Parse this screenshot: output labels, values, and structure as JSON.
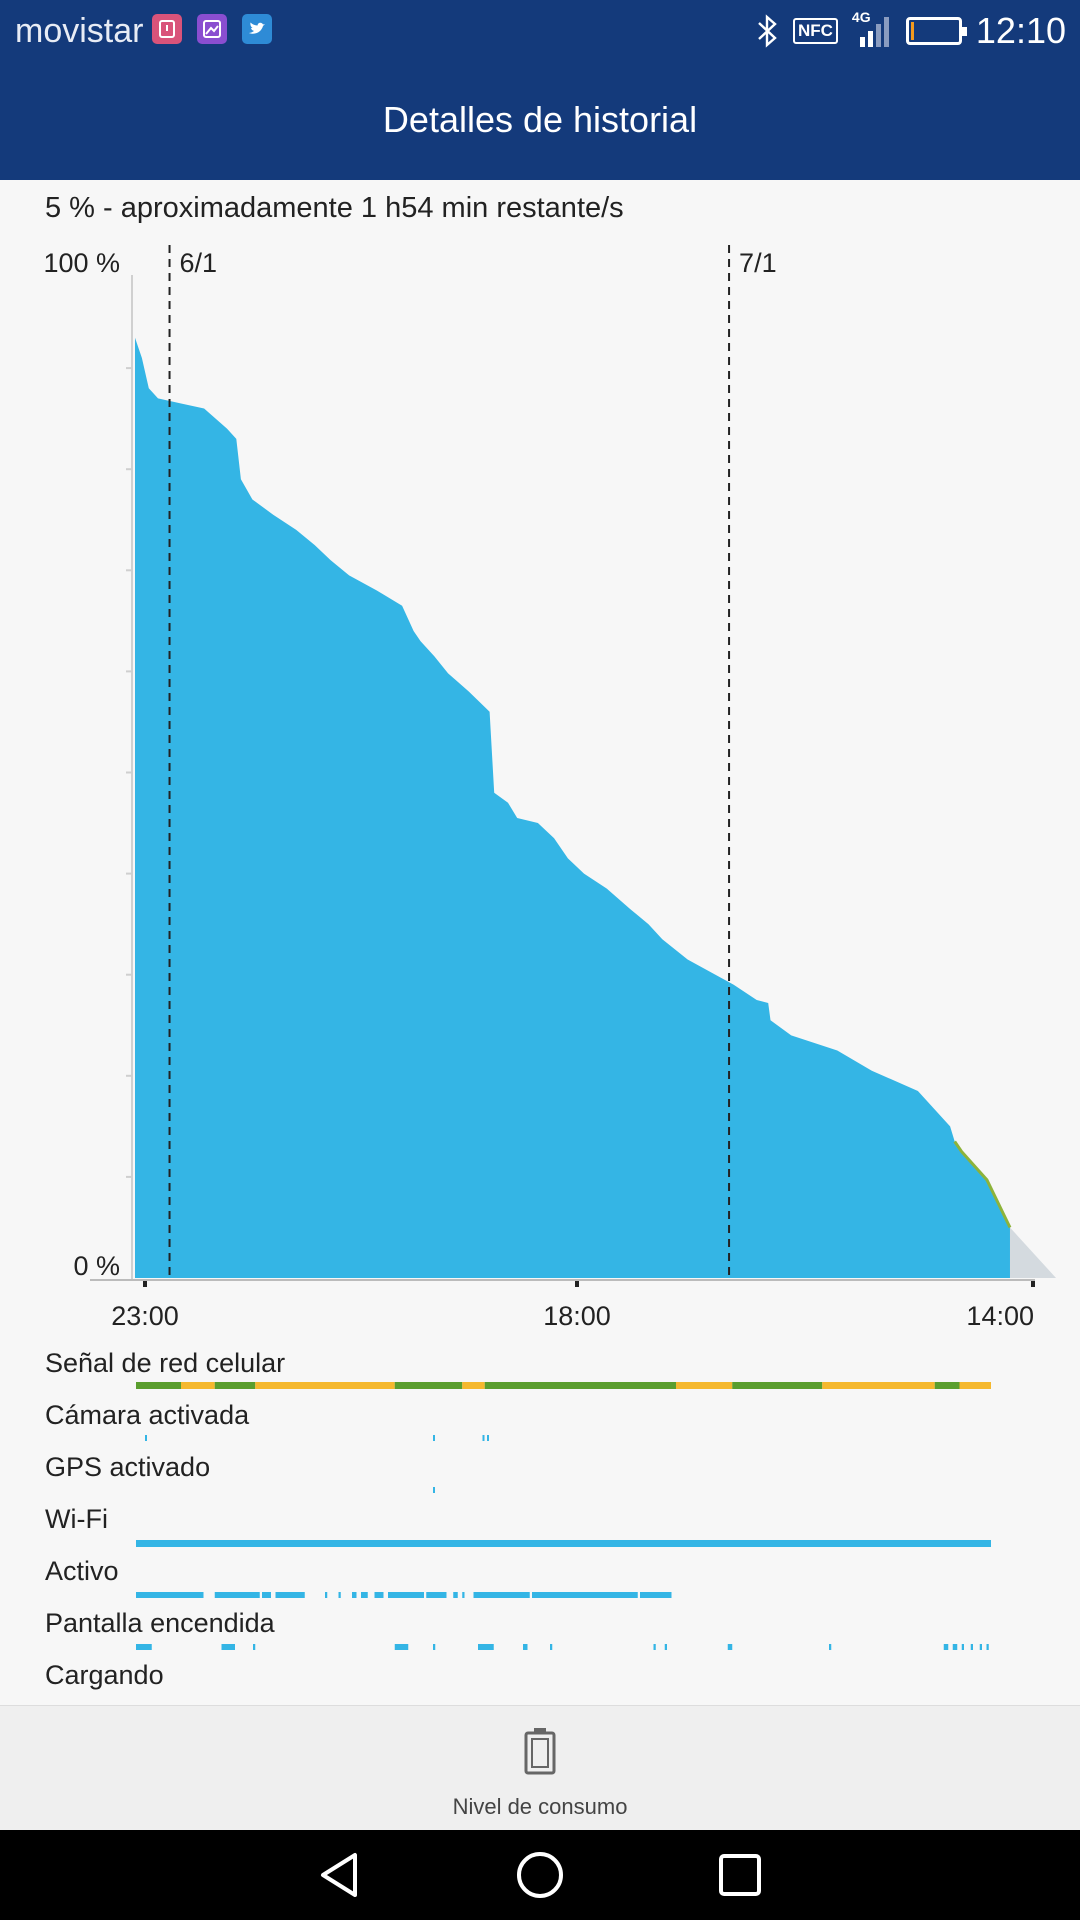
{
  "statusbar": {
    "carrier": "movistar",
    "network": "4G",
    "nfc": "NFC",
    "time": "12:10",
    "notif_icons": [
      "bag-app-icon",
      "gallery-app-icon",
      "twitter-icon"
    ],
    "battery_level": 0.05
  },
  "appbar": {
    "title": "Detalles de historial"
  },
  "summary": "5 % - aproximadamente 1 h54 min restante/s",
  "chart_data": {
    "type": "area",
    "ylim": [
      0,
      100
    ],
    "y_tick_labels": [
      "100 %",
      "0 %"
    ],
    "x_tick_labels": [
      "23:00",
      "18:00",
      "14:00"
    ],
    "date_markers": [
      "6/1",
      "7/1"
    ],
    "x_unit": "hours since 23:00 (5 Jan)",
    "x_domain": [
      0,
      39
    ],
    "series": [
      {
        "name": "battery",
        "x": [
          0,
          0.3,
          0.6,
          1.0,
          2.0,
          3.0,
          4.0,
          4.4,
          4.6,
          5.1,
          6.0,
          7.0,
          7.8,
          8.5,
          9.3,
          10.5,
          11.6,
          12.1,
          12.4,
          13.0,
          13.6,
          14.0,
          14.5,
          15.4,
          15.6,
          16.2,
          16.6,
          17.5,
          18.2,
          18.8,
          19.5,
          20.5,
          21.5,
          22.3,
          22.9,
          24.0,
          26.0,
          27.0,
          27.5,
          27.6,
          28.5,
          30.5,
          32.0,
          34.0,
          35.4,
          35.6,
          35.9,
          37.0,
          38.0
        ],
        "y": [
          93,
          91,
          88,
          87,
          86.5,
          86,
          84,
          83,
          79,
          77,
          75.5,
          74,
          72.5,
          71,
          69.5,
          68,
          66.5,
          64,
          63,
          61.5,
          59.8,
          59,
          58,
          56,
          48,
          47,
          45.5,
          45,
          43.5,
          41.5,
          40,
          38.5,
          36.5,
          35,
          33.5,
          31.5,
          29,
          27.5,
          27.2,
          25.5,
          24,
          22.5,
          20.5,
          18.5,
          15,
          13.5,
          12.5,
          9.7,
          5
        ]
      },
      {
        "name": "projection",
        "x": [
          38,
          40
        ],
        "y": [
          5,
          0
        ]
      }
    ]
  },
  "usage_rows": [
    {
      "label": "Señal de red celular"
    },
    {
      "label": "Cámara activada"
    },
    {
      "label": "GPS activado"
    },
    {
      "label": "Wi-Fi"
    },
    {
      "label": "Activo"
    },
    {
      "label": "Pantalla encendida"
    },
    {
      "label": "Cargando"
    }
  ],
  "timeline": {
    "domain": [
      0,
      38
    ],
    "signal_segments": [
      {
        "from": 0,
        "to": 2,
        "color": "#5a9e2e"
      },
      {
        "from": 2,
        "to": 3.5,
        "color": "#f5b82e"
      },
      {
        "from": 3.5,
        "to": 5.3,
        "color": "#5a9e2e"
      },
      {
        "from": 5.3,
        "to": 11.5,
        "color": "#f5b82e"
      },
      {
        "from": 11.5,
        "to": 14.5,
        "color": "#5a9e2e"
      },
      {
        "from": 14.5,
        "to": 15.5,
        "color": "#f5b82e"
      },
      {
        "from": 15.5,
        "to": 24,
        "color": "#5a9e2e"
      },
      {
        "from": 24,
        "to": 26.5,
        "color": "#f5b82e"
      },
      {
        "from": 26.5,
        "to": 30.5,
        "color": "#5a9e2e"
      },
      {
        "from": 30.5,
        "to": 35.5,
        "color": "#f5b82e"
      },
      {
        "from": 35.5,
        "to": 36.6,
        "color": "#5a9e2e"
      },
      {
        "from": 36.6,
        "to": 38,
        "color": "#f5b82e"
      }
    ],
    "camera_events": [
      0.4,
      13.2,
      15.4,
      15.6
    ],
    "gps_events": [
      13.2
    ],
    "wifi_spans": [
      {
        "from": 0,
        "to": 38
      }
    ],
    "active_spans": [
      {
        "from": 0,
        "to": 3
      },
      {
        "from": 3.5,
        "to": 5.5
      },
      {
        "from": 5.6,
        "to": 6.0
      },
      {
        "from": 6.2,
        "to": 7.5
      },
      {
        "from": 8.4,
        "to": 8.5
      },
      {
        "from": 9.0,
        "to": 9.1
      },
      {
        "from": 9.6,
        "to": 9.8
      },
      {
        "from": 10.0,
        "to": 10.3
      },
      {
        "from": 10.6,
        "to": 11.0
      },
      {
        "from": 11.2,
        "to": 12.8
      },
      {
        "from": 12.9,
        "to": 13.8
      },
      {
        "from": 14.1,
        "to": 14.3
      },
      {
        "from": 14.5,
        "to": 14.6
      },
      {
        "from": 15.0,
        "to": 17.5
      },
      {
        "from": 17.6,
        "to": 22.3
      },
      {
        "from": 22.4,
        "to": 23.8
      }
    ],
    "screen_spans": [
      {
        "from": 0,
        "to": 0.7
      },
      {
        "from": 3.8,
        "to": 4.4
      },
      {
        "from": 5.2,
        "to": 5.3
      },
      {
        "from": 11.5,
        "to": 12.1
      },
      {
        "from": 13.2,
        "to": 13.3
      },
      {
        "from": 15.2,
        "to": 15.9
      },
      {
        "from": 17.2,
        "to": 17.4
      },
      {
        "from": 18.4,
        "to": 18.5
      },
      {
        "from": 23.0,
        "to": 23.1
      },
      {
        "from": 23.5,
        "to": 23.6
      },
      {
        "from": 26.3,
        "to": 26.5
      },
      {
        "from": 30.8,
        "to": 30.9
      },
      {
        "from": 35.9,
        "to": 36.1
      },
      {
        "from": 36.3,
        "to": 36.5
      },
      {
        "from": 36.7,
        "to": 36.8
      },
      {
        "from": 37.1,
        "to": 37.2
      },
      {
        "from": 37.5,
        "to": 37.6
      },
      {
        "from": 37.8,
        "to": 37.9
      }
    ]
  },
  "colors": {
    "appbar": "#143a7b",
    "battery_fill": "#34b5e5",
    "projection_fill": "#d4dadf",
    "charging_line": "#8db33a",
    "signal_good": "#5a9e2e",
    "signal_fair": "#f5b82e"
  },
  "bottom_bar": {
    "label": "Nivel de consumo",
    "icon": "battery-icon"
  },
  "navbar": {
    "icons": [
      "back-icon",
      "home-icon",
      "recents-icon"
    ]
  }
}
